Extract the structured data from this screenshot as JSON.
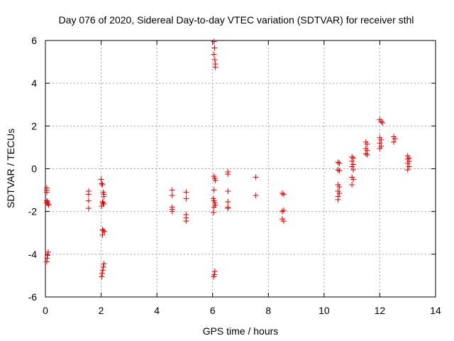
{
  "chart_data": {
    "type": "scatter",
    "title": "Day 076 of 2020, Sidereal Day-to-day VTEC variation (SDTVAR) for receiver sthl",
    "xlabel": "GPS time / hours",
    "ylabel": "SDTVAR / TECUs",
    "xlim": [
      0,
      14
    ],
    "ylim": [
      -6,
      6
    ],
    "xticks": [
      0,
      2,
      4,
      6,
      8,
      10,
      12,
      14
    ],
    "yticks": [
      -6,
      -4,
      -2,
      0,
      2,
      4,
      6
    ],
    "xtick_labels": [
      "0",
      "2",
      "4",
      "6",
      "8",
      "10",
      "12",
      "14"
    ],
    "ytick_labels": [
      "-6",
      "-4",
      "-2",
      "0",
      "2",
      "4",
      "6"
    ],
    "grid": true,
    "marker": "+",
    "marker_color": "#e00000",
    "series": [
      {
        "name": "sthl",
        "points": [
          [
            0.05,
            -0.9
          ],
          [
            0.05,
            -1.1
          ],
          [
            0.05,
            -1.5
          ],
          [
            0.05,
            -1.6
          ],
          [
            0.08,
            -1.55
          ],
          [
            0.1,
            -1.65
          ],
          [
            0.12,
            -1.7
          ],
          [
            0.1,
            -3.9
          ],
          [
            0.08,
            -4.05
          ],
          [
            0.06,
            -4.2
          ],
          [
            0.05,
            -4.35
          ],
          [
            0.05,
            -1.0
          ],
          [
            1.55,
            -1.05
          ],
          [
            1.55,
            -1.2
          ],
          [
            1.55,
            -1.5
          ],
          [
            1.55,
            -1.85
          ],
          [
            2.0,
            -0.5
          ],
          [
            2.02,
            -0.7
          ],
          [
            2.05,
            -0.75
          ],
          [
            2.08,
            -1.1
          ],
          [
            2.1,
            -1.2
          ],
          [
            2.1,
            -1.3
          ],
          [
            2.05,
            -1.55
          ],
          [
            2.07,
            -1.6
          ],
          [
            2.1,
            -1.65
          ],
          [
            2.02,
            -1.75
          ],
          [
            2.05,
            -2.85
          ],
          [
            2.08,
            -2.9
          ],
          [
            2.12,
            -2.95
          ],
          [
            2.05,
            -3.1
          ],
          [
            2.1,
            -4.45
          ],
          [
            2.08,
            -4.6
          ],
          [
            2.06,
            -4.75
          ],
          [
            2.04,
            -4.9
          ],
          [
            2.02,
            -5.05
          ],
          [
            4.55,
            -1.0
          ],
          [
            4.55,
            -1.25
          ],
          [
            4.55,
            -1.8
          ],
          [
            4.55,
            -1.9
          ],
          [
            4.55,
            -2.0
          ],
          [
            5.05,
            -1.1
          ],
          [
            5.05,
            -1.4
          ],
          [
            5.05,
            -2.15
          ],
          [
            5.05,
            -2.3
          ],
          [
            5.05,
            -2.45
          ],
          [
            6.05,
            5.95
          ],
          [
            6.07,
            5.65
          ],
          [
            6.05,
            5.35
          ],
          [
            6.08,
            5.1
          ],
          [
            6.1,
            4.9
          ],
          [
            6.1,
            4.75
          ],
          [
            6.05,
            -0.35
          ],
          [
            6.08,
            -0.45
          ],
          [
            6.1,
            -0.55
          ],
          [
            6.05,
            -1.0
          ],
          [
            6.03,
            -1.4
          ],
          [
            6.05,
            -1.5
          ],
          [
            6.08,
            -1.6
          ],
          [
            6.1,
            -1.7
          ],
          [
            6.05,
            -1.8
          ],
          [
            6.03,
            -2.05
          ],
          [
            6.08,
            -4.8
          ],
          [
            6.06,
            -4.95
          ],
          [
            6.04,
            -5.05
          ],
          [
            6.55,
            -0.15
          ],
          [
            6.55,
            -0.25
          ],
          [
            6.55,
            -1.05
          ],
          [
            6.55,
            -1.55
          ],
          [
            6.55,
            -1.8
          ],
          [
            6.55,
            -1.85
          ],
          [
            7.55,
            -0.4
          ],
          [
            7.55,
            -1.25
          ],
          [
            8.5,
            -1.15
          ],
          [
            8.55,
            -1.2
          ],
          [
            8.5,
            -2.0
          ],
          [
            8.55,
            -1.95
          ],
          [
            8.5,
            -2.35
          ],
          [
            8.55,
            -2.45
          ],
          [
            10.5,
            0.3
          ],
          [
            10.55,
            0.25
          ],
          [
            10.5,
            -0.05
          ],
          [
            10.55,
            -0.1
          ],
          [
            10.5,
            -0.75
          ],
          [
            10.55,
            -0.85
          ],
          [
            10.5,
            -1.05
          ],
          [
            10.55,
            -1.15
          ],
          [
            10.5,
            -1.3
          ],
          [
            10.5,
            -1.45
          ],
          [
            11.0,
            0.55
          ],
          [
            11.05,
            0.5
          ],
          [
            11.0,
            0.35
          ],
          [
            11.05,
            0.2
          ],
          [
            11.0,
            0.1
          ],
          [
            11.05,
            -0.05
          ],
          [
            11.0,
            -0.4
          ],
          [
            11.05,
            -0.5
          ],
          [
            11.0,
            -0.75
          ],
          [
            11.5,
            1.25
          ],
          [
            11.55,
            1.15
          ],
          [
            11.5,
            0.95
          ],
          [
            11.55,
            0.85
          ],
          [
            11.5,
            0.7
          ],
          [
            11.55,
            0.65
          ],
          [
            12.0,
            2.3
          ],
          [
            12.05,
            2.2
          ],
          [
            12.1,
            2.15
          ],
          [
            12.0,
            1.45
          ],
          [
            12.05,
            1.35
          ],
          [
            12.0,
            1.2
          ],
          [
            12.05,
            1.05
          ],
          [
            12.0,
            0.95
          ],
          [
            12.5,
            1.5
          ],
          [
            12.55,
            1.4
          ],
          [
            12.5,
            1.25
          ],
          [
            13.0,
            0.6
          ],
          [
            13.05,
            0.5
          ],
          [
            13.0,
            0.45
          ],
          [
            13.05,
            0.35
          ],
          [
            13.0,
            0.25
          ],
          [
            13.05,
            0.1
          ],
          [
            13.0,
            -0.05
          ]
        ]
      }
    ]
  }
}
